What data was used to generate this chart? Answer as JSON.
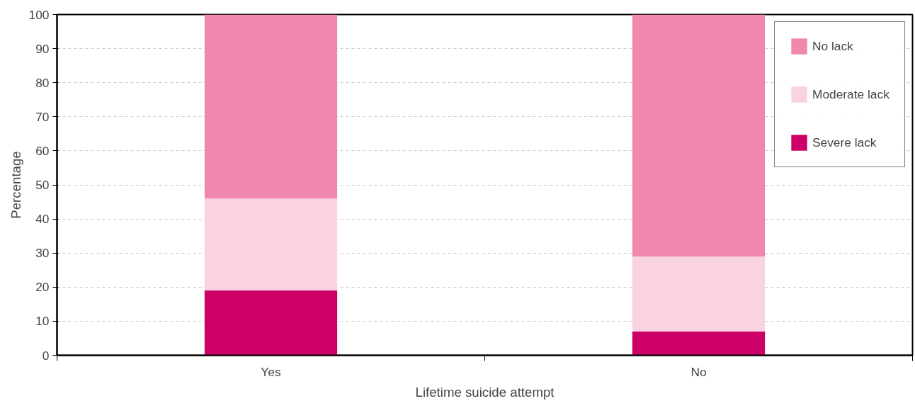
{
  "chart_data": {
    "type": "bar",
    "stacked": true,
    "xlabel": "Lifetime suicide attempt",
    "ylabel": "Percentage",
    "categories": [
      "Yes",
      "No"
    ],
    "series": [
      {
        "name": "Severe lack",
        "color": "#cc0066",
        "values": [
          19,
          7
        ]
      },
      {
        "name": "Moderate lack",
        "color": "#f9d3e1",
        "values": [
          27,
          22
        ]
      },
      {
        "name": "No lack",
        "color": "#f087ae",
        "values": [
          54,
          71
        ]
      }
    ],
    "ylim": [
      0,
      100
    ],
    "yticks": [
      0,
      10,
      20,
      30,
      40,
      50,
      60,
      70,
      80,
      90,
      100
    ],
    "grid": "y",
    "legend": "top right"
  }
}
